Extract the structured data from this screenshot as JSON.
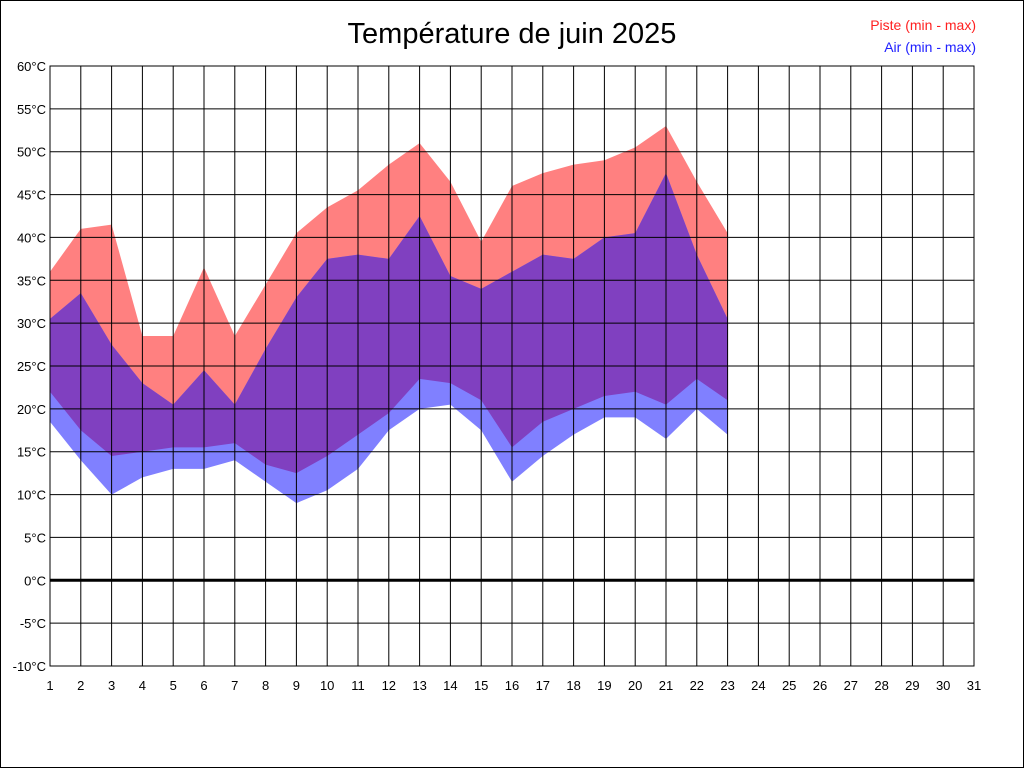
{
  "chart_data": {
    "type": "area",
    "title": "Température de juin 2025",
    "xlabel": "",
    "ylabel": "",
    "ylim": [
      -10,
      60
    ],
    "xlim": [
      1,
      31
    ],
    "y_ticks": [
      60,
      55,
      50,
      45,
      40,
      35,
      30,
      25,
      20,
      15,
      10,
      5,
      0,
      -5,
      -10
    ],
    "y_tick_labels": [
      "60°C",
      "55°C",
      "50°C",
      "45°C",
      "40°C",
      "35°C",
      "30°C",
      "25°C",
      "20°C",
      "15°C",
      "10°C",
      "5°C",
      "0°C",
      "-5°C",
      "-10°C"
    ],
    "x_ticks": [
      1,
      2,
      3,
      4,
      5,
      6,
      7,
      8,
      9,
      10,
      11,
      12,
      13,
      14,
      15,
      16,
      17,
      18,
      19,
      20,
      21,
      22,
      23,
      24,
      25,
      26,
      27,
      28,
      29,
      30,
      31
    ],
    "x_tick_labels": [
      "1",
      "2",
      "3",
      "4",
      "5",
      "6",
      "7",
      "8",
      "9",
      "10",
      "11",
      "12",
      "13",
      "14",
      "15",
      "16",
      "17",
      "18",
      "19",
      "20",
      "21",
      "22",
      "23",
      "24",
      "25",
      "26",
      "27",
      "28",
      "29",
      "30",
      "31"
    ],
    "grid": true,
    "zero_line": true,
    "legend_position": "top-right",
    "x": [
      1,
      2,
      3,
      4,
      5,
      6,
      7,
      8,
      9,
      10,
      11,
      12,
      13,
      14,
      15,
      16,
      17,
      18,
      19,
      20,
      21,
      22,
      23
    ],
    "series": [
      {
        "name": "Piste (min - max)",
        "color": "#ff8080",
        "min": [
          22,
          17.5,
          14.5,
          15,
          15.5,
          15.5,
          16,
          13.5,
          12.5,
          14.5,
          17,
          19.5,
          23.5,
          23,
          21,
          15.5,
          18.5,
          20,
          21.5,
          22,
          20.5,
          23.5,
          21
        ],
        "max": [
          36,
          41,
          41.5,
          28.5,
          28.5,
          36.5,
          28.5,
          34.5,
          40.5,
          43.5,
          45.5,
          48.5,
          51,
          46.5,
          39.5,
          46,
          47.5,
          48.5,
          49,
          50.5,
          53,
          46.5,
          40.5
        ]
      },
      {
        "name": "Air (min - max)",
        "color": "#8080ff",
        "min": [
          18.5,
          14,
          10,
          12,
          13,
          13,
          14,
          11.5,
          9,
          10.5,
          13,
          17.5,
          20,
          20.5,
          17.5,
          11.5,
          14.5,
          17,
          19,
          19,
          16.5,
          20,
          17
        ],
        "max": [
          30.5,
          33.5,
          27.5,
          23,
          20.5,
          24.5,
          20.5,
          27,
          33,
          37.5,
          38,
          37.5,
          42.5,
          35.5,
          34,
          36,
          38,
          37.5,
          40,
          40.5,
          47.5,
          38,
          30.5
        ]
      }
    ]
  },
  "legend": {
    "items": [
      {
        "label": "Piste (min - max)",
        "color": "#ff2020"
      },
      {
        "label": "Air (min - max)",
        "color": "#2020ff"
      }
    ]
  },
  "colors": {
    "overlap": "#8040c0",
    "grid": "#000000",
    "zero_line": "#000000"
  }
}
